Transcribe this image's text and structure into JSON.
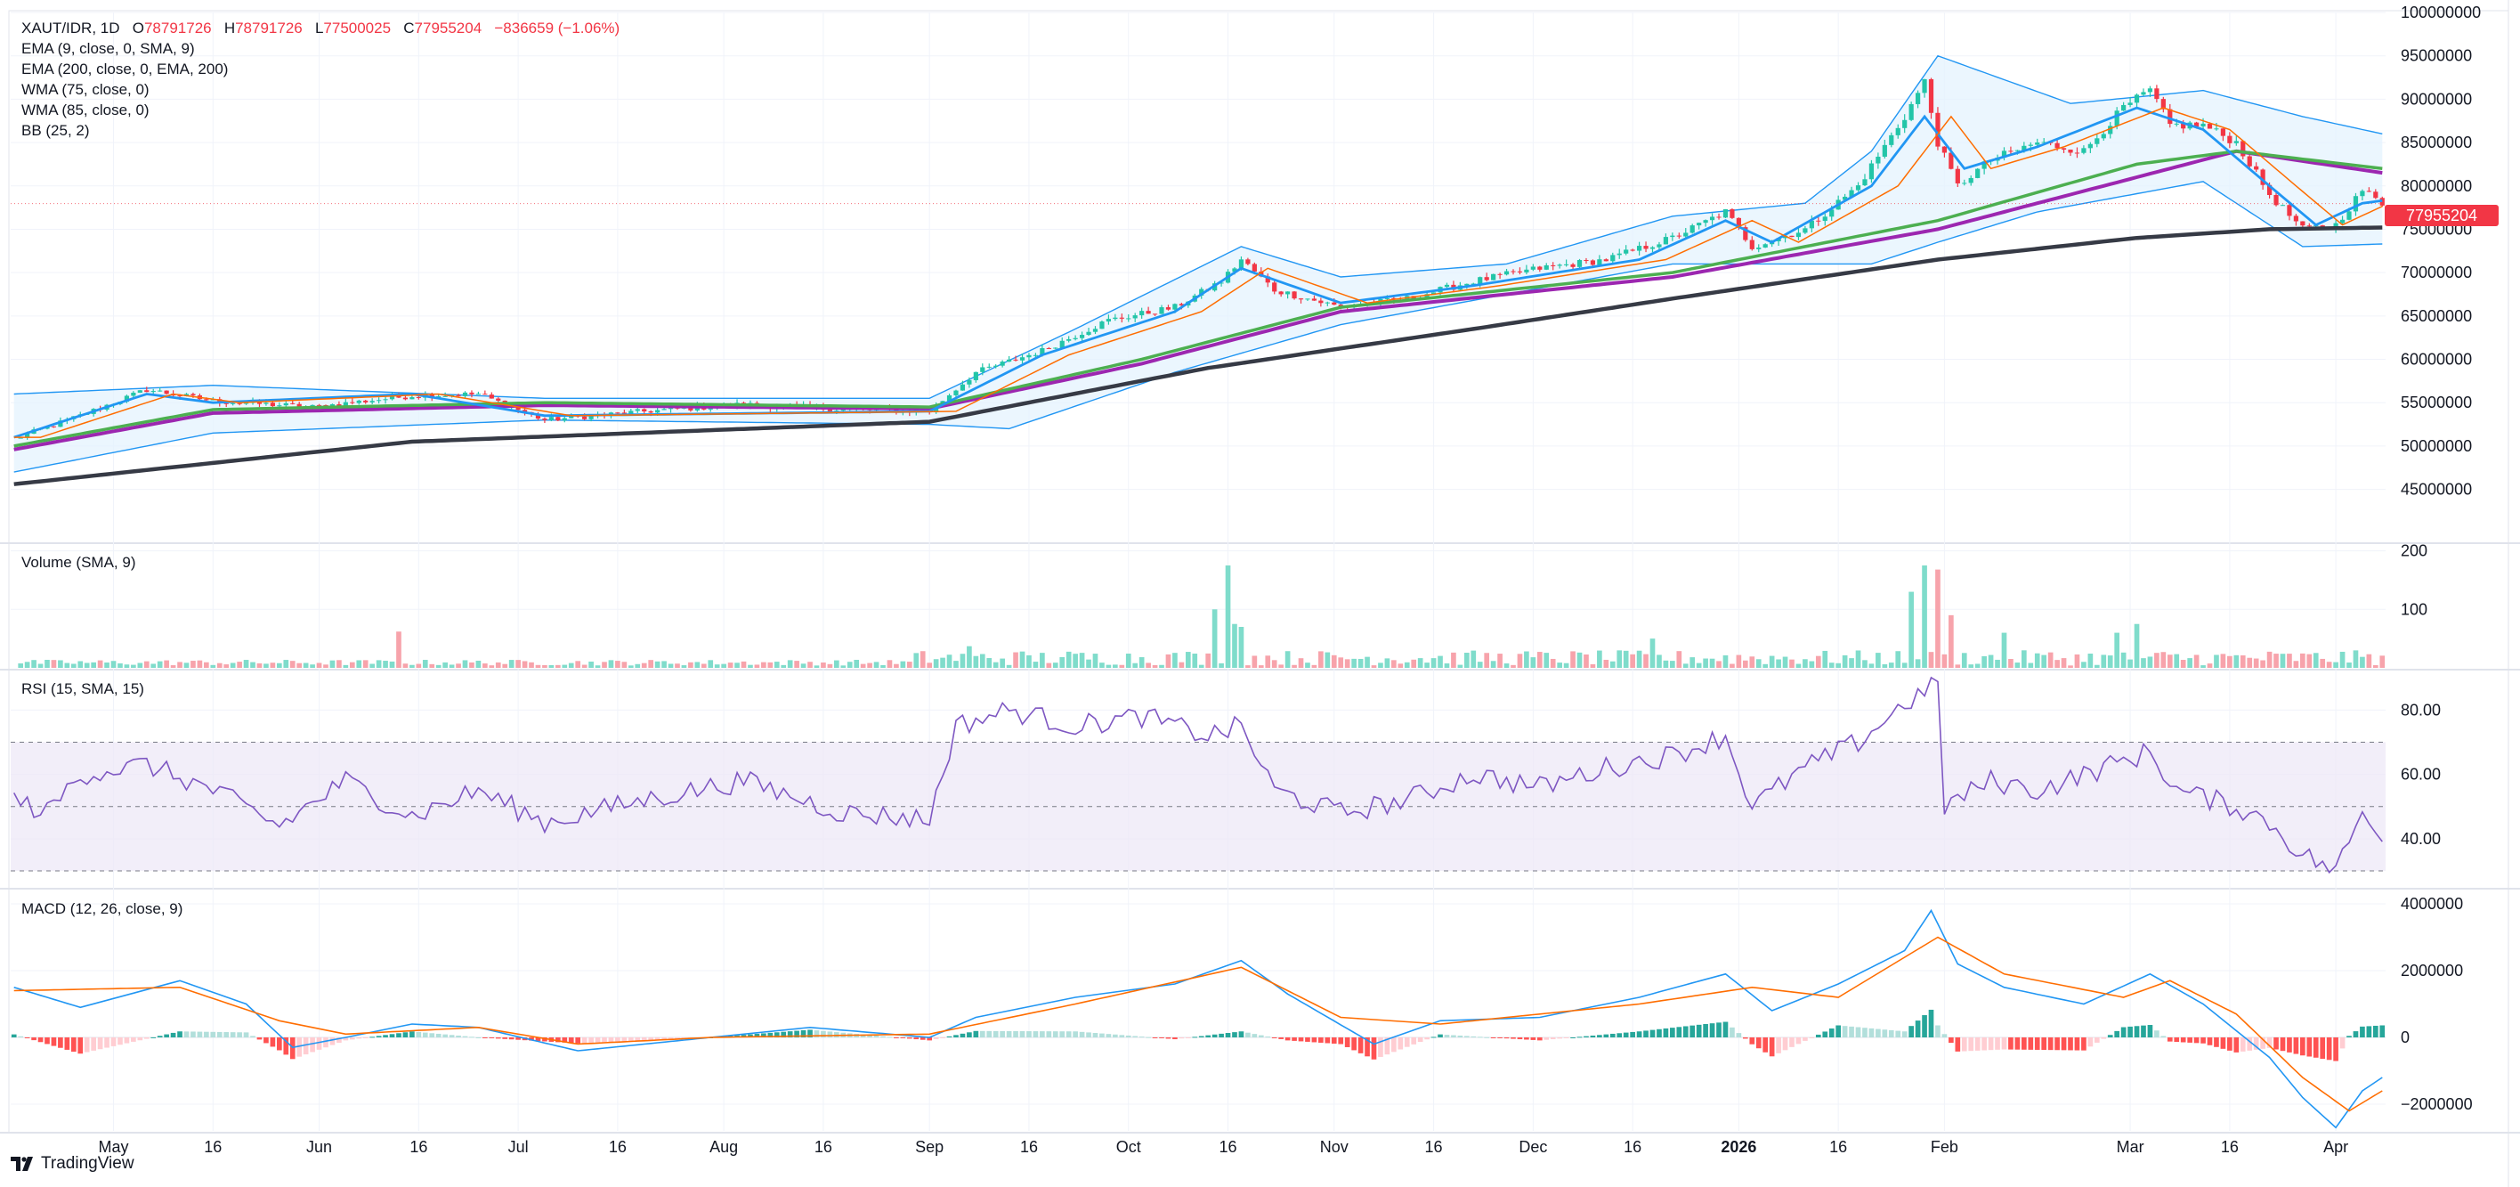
{
  "header": {
    "symbol": "XAUT/IDR, 1D",
    "open_label": "O",
    "open": "78791726",
    "high_label": "H",
    "high": "78791726",
    "low_label": "L",
    "low": "77500025",
    "close_label": "C",
    "close": "77955204",
    "change": "−836659 (−1.06%)"
  },
  "indicators": [
    "EMA (9, close, 0, SMA, 9)",
    "EMA (200, close, 0, EMA, 200)",
    "WMA (75, close, 0)",
    "WMA (85, close, 0)",
    "BB (25, 2)"
  ],
  "price_badge": "77955204",
  "panes": {
    "volume_title": "Volume (SMA, 9)",
    "rsi_title": "RSI (15, SMA, 15)",
    "macd_title": "MACD (12, 26, close, 9)"
  },
  "brand": "TradingView",
  "colors": {
    "up": "#089981",
    "up_light": "#22c5a8",
    "down": "#f23645",
    "ema9": "#2196f3",
    "ema200": "#363a45",
    "wma75": "#4caf50",
    "wma85": "#9c27b0",
    "bb": "#2196f3",
    "bb_fill": "#e3f2fd",
    "rsi": "#7e57c2",
    "rsi_band": "#ede7f6",
    "macd": "#2196f3",
    "signal": "#ff6d00"
  },
  "chart_data": [
    {
      "type": "line",
      "pane": "price",
      "yaxis_ticks": [
        45000000,
        50000000,
        55000000,
        60000000,
        65000000,
        70000000,
        75000000,
        80000000,
        85000000,
        90000000,
        95000000,
        100000000
      ],
      "ylim": [
        39000000,
        100000000
      ],
      "x_ticks": [
        "May",
        "16",
        "Jun",
        "16",
        "Jul",
        "16",
        "Aug",
        "16",
        "Sep",
        "16",
        "Oct",
        "16",
        "Nov",
        "16",
        "Dec",
        "16",
        "2026",
        "16",
        "Feb",
        "Mar",
        "16",
        "Apr"
      ],
      "x_tick_day": [
        15,
        30,
        46,
        61,
        76,
        91,
        107,
        122,
        138,
        153,
        168,
        183,
        199,
        214,
        229,
        244,
        260,
        275,
        291,
        319,
        334,
        350
      ],
      "days": 354,
      "close_anchors": [
        [
          0,
          50800000
        ],
        [
          10,
          53500000
        ],
        [
          20,
          56500000
        ],
        [
          30,
          55200000
        ],
        [
          45,
          54500000
        ],
        [
          60,
          55800000
        ],
        [
          70,
          56000000
        ],
        [
          80,
          53000000
        ],
        [
          95,
          54000000
        ],
        [
          110,
          54800000
        ],
        [
          125,
          54200000
        ],
        [
          138,
          54000000
        ],
        [
          145,
          58500000
        ],
        [
          155,
          61000000
        ],
        [
          165,
          64500000
        ],
        [
          175,
          66000000
        ],
        [
          182,
          69000000
        ],
        [
          185,
          71500000
        ],
        [
          190,
          68000000
        ],
        [
          200,
          66000000
        ],
        [
          210,
          67000000
        ],
        [
          220,
          69000000
        ],
        [
          230,
          70500000
        ],
        [
          240,
          71500000
        ],
        [
          250,
          74000000
        ],
        [
          258,
          77000000
        ],
        [
          262,
          73000000
        ],
        [
          270,
          75000000
        ],
        [
          278,
          80000000
        ],
        [
          285,
          88000000
        ],
        [
          288,
          92000000
        ],
        [
          290,
          85000000
        ],
        [
          293,
          80000000
        ],
        [
          298,
          83000000
        ],
        [
          305,
          85000000
        ],
        [
          312,
          84000000
        ],
        [
          318,
          89000000
        ],
        [
          322,
          91000000
        ],
        [
          325,
          87000000
        ],
        [
          330,
          87000000
        ],
        [
          335,
          85000000
        ],
        [
          340,
          79000000
        ],
        [
          345,
          75000000
        ],
        [
          350,
          75500000
        ],
        [
          354,
          79500000
        ],
        [
          357,
          77955204
        ]
      ],
      "ema200_anchors": [
        [
          0,
          45600000
        ],
        [
          60,
          50500000
        ],
        [
          138,
          52800000
        ],
        [
          180,
          59000000
        ],
        [
          220,
          63500000
        ],
        [
          250,
          67000000
        ],
        [
          290,
          71500000
        ],
        [
          320,
          74000000
        ],
        [
          340,
          75000000
        ],
        [
          357,
          75200000
        ]
      ],
      "wma75_anchors": [
        [
          0,
          50000000
        ],
        [
          30,
          54200000
        ],
        [
          80,
          55000000
        ],
        [
          138,
          54500000
        ],
        [
          170,
          60000000
        ],
        [
          200,
          66000000
        ],
        [
          250,
          70000000
        ],
        [
          290,
          76000000
        ],
        [
          320,
          82500000
        ],
        [
          335,
          84000000
        ],
        [
          357,
          82000000
        ]
      ],
      "wma85_anchors": [
        [
          0,
          49600000
        ],
        [
          30,
          53800000
        ],
        [
          80,
          54700000
        ],
        [
          138,
          54300000
        ],
        [
          170,
          59500000
        ],
        [
          200,
          65500000
        ],
        [
          250,
          69500000
        ],
        [
          290,
          75000000
        ],
        [
          320,
          81000000
        ],
        [
          335,
          84000000
        ],
        [
          357,
          81500000
        ]
      ],
      "ema9_anchors": [
        [
          0,
          51000000
        ],
        [
          10,
          53500000
        ],
        [
          20,
          56000000
        ],
        [
          30,
          55000000
        ],
        [
          60,
          56000000
        ],
        [
          80,
          53500000
        ],
        [
          138,
          54000000
        ],
        [
          155,
          60500000
        ],
        [
          175,
          65500000
        ],
        [
          185,
          70500000
        ],
        [
          200,
          66500000
        ],
        [
          220,
          68500000
        ],
        [
          245,
          71500000
        ],
        [
          258,
          76000000
        ],
        [
          265,
          73500000
        ],
        [
          280,
          80000000
        ],
        [
          288,
          88000000
        ],
        [
          294,
          82000000
        ],
        [
          305,
          84500000
        ],
        [
          320,
          89000000
        ],
        [
          330,
          86500000
        ],
        [
          340,
          80000000
        ],
        [
          347,
          75500000
        ],
        [
          354,
          78000000
        ],
        [
          357,
          78300000
        ]
      ],
      "bb_upper_anchors": [
        [
          0,
          56000000
        ],
        [
          30,
          57000000
        ],
        [
          80,
          55500000
        ],
        [
          138,
          55500000
        ],
        [
          160,
          63500000
        ],
        [
          185,
          73000000
        ],
        [
          200,
          69500000
        ],
        [
          225,
          71000000
        ],
        [
          250,
          76500000
        ],
        [
          270,
          78000000
        ],
        [
          280,
          84000000
        ],
        [
          290,
          95000000
        ],
        [
          310,
          89500000
        ],
        [
          330,
          91000000
        ],
        [
          345,
          88000000
        ],
        [
          357,
          86000000
        ]
      ],
      "bb_lower_anchors": [
        [
          0,
          47000000
        ],
        [
          30,
          51500000
        ],
        [
          80,
          53000000
        ],
        [
          138,
          52500000
        ],
        [
          150,
          52000000
        ],
        [
          175,
          58500000
        ],
        [
          200,
          64000000
        ],
        [
          225,
          67500000
        ],
        [
          250,
          71000000
        ],
        [
          280,
          71000000
        ],
        [
          290,
          73500000
        ],
        [
          305,
          77000000
        ],
        [
          330,
          80500000
        ],
        [
          345,
          73000000
        ],
        [
          357,
          73300000
        ]
      ]
    },
    {
      "type": "bar",
      "pane": "volume",
      "yaxis_ticks": [
        100,
        200
      ],
      "ylim": [
        0,
        210
      ],
      "spikes": [
        [
          58,
          62
        ],
        [
          144,
          37
        ],
        [
          181,
          100
        ],
        [
          183,
          175
        ],
        [
          184,
          75
        ],
        [
          185,
          70
        ],
        [
          247,
          50
        ],
        [
          286,
          130
        ],
        [
          288,
          175
        ],
        [
          290,
          168
        ],
        [
          292,
          90
        ],
        [
          300,
          60
        ],
        [
          317,
          60
        ],
        [
          320,
          75
        ]
      ]
    },
    {
      "type": "line",
      "pane": "rsi",
      "yaxis_ticks": [
        40.0,
        60.0,
        80.0
      ],
      "ylim": [
        25,
        92
      ],
      "band": [
        30,
        70
      ],
      "midline": 50,
      "anchors": [
        [
          0,
          52
        ],
        [
          5,
          48
        ],
        [
          10,
          60
        ],
        [
          20,
          63
        ],
        [
          30,
          55
        ],
        [
          40,
          44
        ],
        [
          50,
          58
        ],
        [
          60,
          47
        ],
        [
          70,
          55
        ],
        [
          80,
          45
        ],
        [
          95,
          52
        ],
        [
          110,
          58
        ],
        [
          125,
          48
        ],
        [
          138,
          46
        ],
        [
          142,
          75
        ],
        [
          150,
          80
        ],
        [
          160,
          75
        ],
        [
          170,
          78
        ],
        [
          180,
          72
        ],
        [
          185,
          75
        ],
        [
          190,
          55
        ],
        [
          200,
          48
        ],
        [
          210,
          52
        ],
        [
          220,
          60
        ],
        [
          230,
          56
        ],
        [
          240,
          62
        ],
        [
          250,
          66
        ],
        [
          258,
          72
        ],
        [
          262,
          50
        ],
        [
          270,
          62
        ],
        [
          278,
          70
        ],
        [
          285,
          82
        ],
        [
          290,
          88
        ],
        [
          291,
          50
        ],
        [
          298,
          58
        ],
        [
          305,
          55
        ],
        [
          315,
          62
        ],
        [
          322,
          67
        ],
        [
          326,
          55
        ],
        [
          335,
          50
        ],
        [
          340,
          45
        ],
        [
          345,
          35
        ],
        [
          350,
          30
        ],
        [
          354,
          48
        ],
        [
          357,
          42
        ]
      ]
    },
    {
      "type": "line",
      "pane": "macd",
      "yaxis_ticks": [
        -2000000,
        0,
        2000000,
        4000000
      ],
      "ylim": [
        -2800000,
        4400000
      ],
      "macd_anchors": [
        [
          0,
          1500000
        ],
        [
          10,
          900000
        ],
        [
          25,
          1700000
        ],
        [
          35,
          1000000
        ],
        [
          42,
          -300000
        ],
        [
          50,
          0
        ],
        [
          60,
          400000
        ],
        [
          70,
          300000
        ],
        [
          85,
          -400000
        ],
        [
          105,
          0
        ],
        [
          120,
          300000
        ],
        [
          138,
          0
        ],
        [
          145,
          600000
        ],
        [
          160,
          1200000
        ],
        [
          175,
          1600000
        ],
        [
          185,
          2300000
        ],
        [
          192,
          1300000
        ],
        [
          205,
          -200000
        ],
        [
          215,
          500000
        ],
        [
          230,
          600000
        ],
        [
          245,
          1200000
        ],
        [
          258,
          1900000
        ],
        [
          265,
          800000
        ],
        [
          275,
          1600000
        ],
        [
          285,
          2600000
        ],
        [
          289,
          3800000
        ],
        [
          293,
          2200000
        ],
        [
          300,
          1500000
        ],
        [
          312,
          1000000
        ],
        [
          322,
          1900000
        ],
        [
          330,
          1000000
        ],
        [
          340,
          -600000
        ],
        [
          345,
          -1800000
        ],
        [
          350,
          -2700000
        ],
        [
          354,
          -1600000
        ],
        [
          357,
          -1200000
        ]
      ],
      "signal_anchors": [
        [
          0,
          1400000
        ],
        [
          25,
          1500000
        ],
        [
          40,
          500000
        ],
        [
          50,
          100000
        ],
        [
          70,
          300000
        ],
        [
          85,
          -200000
        ],
        [
          105,
          0
        ],
        [
          138,
          100000
        ],
        [
          160,
          1000000
        ],
        [
          185,
          2100000
        ],
        [
          200,
          600000
        ],
        [
          215,
          400000
        ],
        [
          245,
          1000000
        ],
        [
          262,
          1500000
        ],
        [
          275,
          1200000
        ],
        [
          290,
          3000000
        ],
        [
          300,
          1900000
        ],
        [
          318,
          1200000
        ],
        [
          325,
          1700000
        ],
        [
          335,
          700000
        ],
        [
          345,
          -1200000
        ],
        [
          352,
          -2200000
        ],
        [
          357,
          -1600000
        ]
      ]
    }
  ]
}
